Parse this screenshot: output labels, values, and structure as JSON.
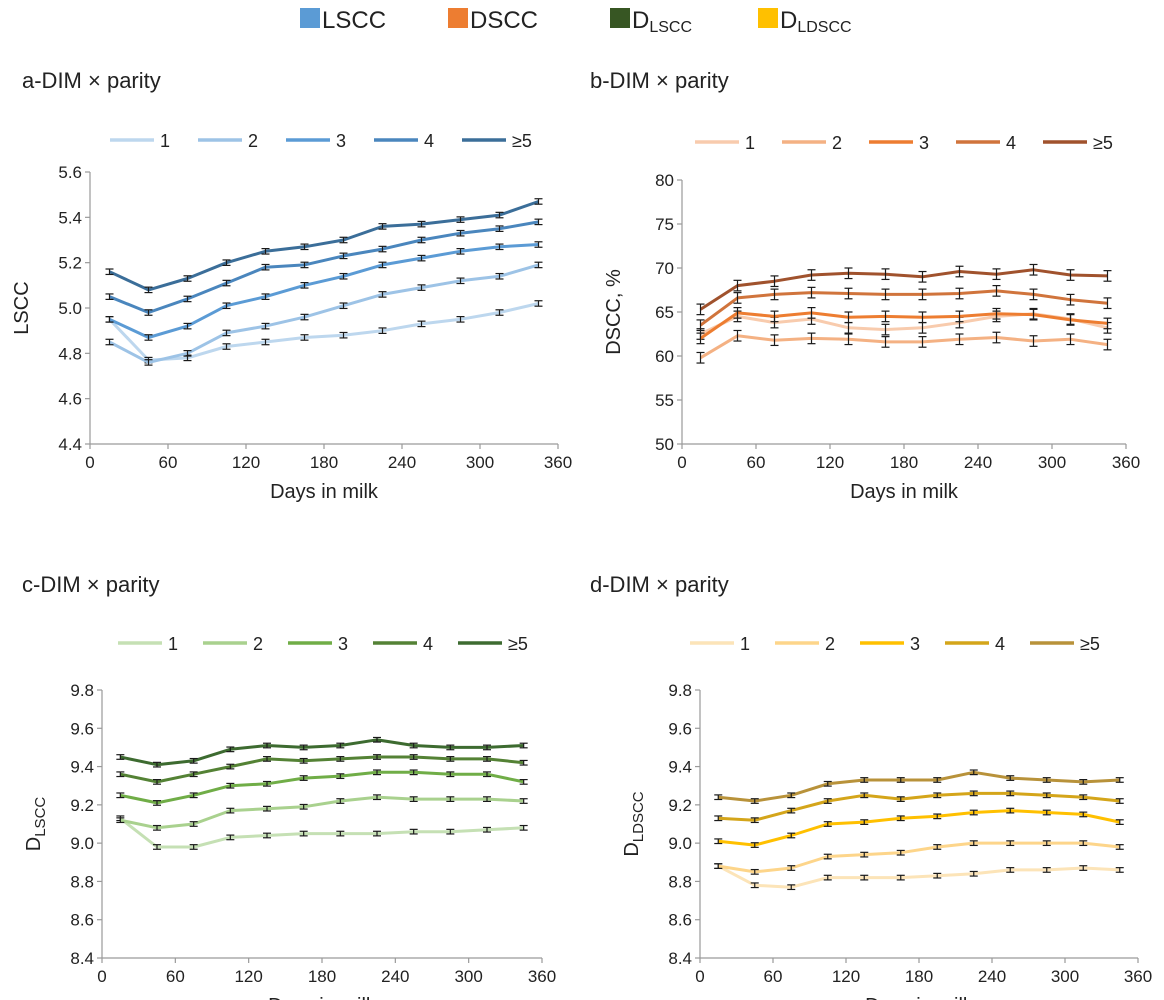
{
  "figure_legend": [
    {
      "label": "LSCC",
      "sub": "",
      "color": "#5b9bd5"
    },
    {
      "label": "DSCC",
      "sub": "",
      "color": "#ed7d31"
    },
    {
      "label": "D",
      "sub": "LSCC",
      "color": "#375623"
    },
    {
      "label": "D",
      "sub": "LDSCC",
      "color": "#ffc000"
    }
  ],
  "chart_data": [
    {
      "id": "a",
      "type": "line",
      "title": "a-DIM × parity",
      "xlabel": "Days in milk",
      "ylabel": "LSCC",
      "ylabel_sub": "",
      "xlim": [
        0,
        360
      ],
      "ylim": [
        4.4,
        5.6
      ],
      "xticks": [
        0,
        60,
        120,
        180,
        240,
        300,
        360
      ],
      "yticks": [
        "4.4",
        "4.6",
        "4.8",
        "5.0",
        "5.2",
        "5.4",
        "5.6"
      ],
      "legend_position": "top",
      "grid": false,
      "x": [
        15,
        45,
        75,
        105,
        135,
        165,
        195,
        225,
        255,
        285,
        315,
        345
      ],
      "series": [
        {
          "name": "1",
          "color": "#bdd7ee",
          "err": 0.012,
          "values": [
            4.95,
            4.77,
            4.78,
            4.83,
            4.85,
            4.87,
            4.88,
            4.9,
            4.93,
            4.95,
            4.98,
            5.02
          ]
        },
        {
          "name": "2",
          "color": "#9dc3e6",
          "err": 0.012,
          "values": [
            4.85,
            4.76,
            4.8,
            4.89,
            4.92,
            4.96,
            5.01,
            5.06,
            5.09,
            5.12,
            5.14,
            5.19
          ]
        },
        {
          "name": "3",
          "color": "#5b9bd5",
          "err": 0.012,
          "values": [
            4.95,
            4.87,
            4.92,
            5.01,
            5.05,
            5.1,
            5.14,
            5.19,
            5.22,
            5.25,
            5.27,
            5.28
          ]
        },
        {
          "name": "4",
          "color": "#4a86bd",
          "err": 0.012,
          "values": [
            5.05,
            4.98,
            5.04,
            5.11,
            5.18,
            5.19,
            5.23,
            5.26,
            5.3,
            5.33,
            5.35,
            5.38
          ]
        },
        {
          "name": "≥5",
          "color": "#3b6e99",
          "err": 0.012,
          "values": [
            5.16,
            5.08,
            5.13,
            5.2,
            5.25,
            5.27,
            5.3,
            5.36,
            5.37,
            5.39,
            5.41,
            5.47
          ]
        }
      ]
    },
    {
      "id": "b",
      "type": "line",
      "title": "b-DIM × parity",
      "xlabel": "Days in milk",
      "ylabel": "DSCC, %",
      "ylabel_sub": "",
      "xlim": [
        0,
        360
      ],
      "ylim": [
        50,
        80
      ],
      "xticks": [
        0,
        60,
        120,
        180,
        240,
        300,
        360
      ],
      "yticks": [
        "50",
        "55",
        "60",
        "65",
        "70",
        "75",
        "80"
      ],
      "legend_position": "top",
      "grid": false,
      "x": [
        15,
        45,
        75,
        105,
        135,
        165,
        195,
        225,
        255,
        285,
        315,
        345
      ],
      "series": [
        {
          "name": "1",
          "color": "#f8cbad",
          "err": 0.6,
          "values": [
            62.5,
            64.5,
            63.8,
            64.2,
            63.2,
            63.0,
            63.2,
            63.8,
            64.5,
            64.8,
            64.2,
            63.2
          ]
        },
        {
          "name": "2",
          "color": "#f4b183",
          "err": 0.6,
          "values": [
            59.8,
            62.3,
            61.8,
            62.0,
            61.9,
            61.6,
            61.6,
            61.9,
            62.1,
            61.7,
            61.9,
            61.3
          ]
        },
        {
          "name": "3",
          "color": "#ed7d31",
          "err": 0.6,
          "values": [
            62.0,
            64.9,
            64.5,
            64.9,
            64.4,
            64.5,
            64.4,
            64.5,
            64.8,
            64.7,
            64.1,
            63.7
          ]
        },
        {
          "name": "4",
          "color": "#d0743c",
          "err": 0.6,
          "values": [
            63.5,
            66.6,
            67.0,
            67.2,
            67.1,
            67.0,
            67.0,
            67.1,
            67.4,
            67.0,
            66.4,
            66.0
          ]
        },
        {
          "name": "≥5",
          "color": "#a0522d",
          "err": 0.6,
          "values": [
            65.3,
            68.0,
            68.5,
            69.2,
            69.4,
            69.3,
            69.0,
            69.6,
            69.3,
            69.8,
            69.2,
            69.1
          ]
        }
      ]
    },
    {
      "id": "c",
      "type": "line",
      "title": "c-DIM × parity",
      "xlabel": "Days in milk",
      "ylabel": "D",
      "ylabel_sub": "LSCC",
      "xlim": [
        0,
        360
      ],
      "ylim": [
        8.4,
        9.8
      ],
      "xticks": [
        0,
        60,
        120,
        180,
        240,
        300,
        360
      ],
      "yticks": [
        "8.4",
        "8.6",
        "8.8",
        "9.0",
        "9.2",
        "9.4",
        "9.6",
        "9.8"
      ],
      "legend_position": "top",
      "grid": false,
      "x": [
        15,
        45,
        75,
        105,
        135,
        165,
        195,
        225,
        255,
        285,
        315,
        345
      ],
      "series": [
        {
          "name": "1",
          "color": "#c5e0b4",
          "err": 0.012,
          "values": [
            9.13,
            8.98,
            8.98,
            9.03,
            9.04,
            9.05,
            9.05,
            9.05,
            9.06,
            9.06,
            9.07,
            9.08
          ]
        },
        {
          "name": "2",
          "color": "#a9d18e",
          "err": 0.012,
          "values": [
            9.12,
            9.08,
            9.1,
            9.17,
            9.18,
            9.19,
            9.22,
            9.24,
            9.23,
            9.23,
            9.23,
            9.22
          ]
        },
        {
          "name": "3",
          "color": "#70ad47",
          "err": 0.012,
          "values": [
            9.25,
            9.21,
            9.25,
            9.3,
            9.31,
            9.34,
            9.35,
            9.37,
            9.37,
            9.36,
            9.36,
            9.32
          ]
        },
        {
          "name": "4",
          "color": "#548235",
          "err": 0.012,
          "values": [
            9.36,
            9.32,
            9.36,
            9.4,
            9.44,
            9.43,
            9.44,
            9.45,
            9.45,
            9.44,
            9.44,
            9.42
          ]
        },
        {
          "name": "≥5",
          "color": "#3d6b30",
          "err": 0.012,
          "values": [
            9.45,
            9.41,
            9.43,
            9.49,
            9.51,
            9.5,
            9.51,
            9.54,
            9.51,
            9.5,
            9.5,
            9.51
          ]
        }
      ]
    },
    {
      "id": "d",
      "type": "line",
      "title": "d-DIM × parity",
      "xlabel": "Days in milk",
      "ylabel": "D",
      "ylabel_sub": "LDSCC",
      "xlim": [
        0,
        360
      ],
      "ylim": [
        8.4,
        9.8
      ],
      "xticks": [
        0,
        60,
        120,
        180,
        240,
        300,
        360
      ],
      "yticks": [
        "8.4",
        "8.6",
        "8.8",
        "9.0",
        "9.2",
        "9.4",
        "9.6",
        "9.8"
      ],
      "legend_position": "top",
      "grid": false,
      "x": [
        15,
        45,
        75,
        105,
        135,
        165,
        195,
        225,
        255,
        285,
        315,
        345
      ],
      "series": [
        {
          "name": "1",
          "color": "#fce4b8",
          "err": 0.012,
          "values": [
            8.88,
            8.78,
            8.77,
            8.82,
            8.82,
            8.82,
            8.83,
            8.84,
            8.86,
            8.86,
            8.87,
            8.86
          ]
        },
        {
          "name": "2",
          "color": "#fdd58a",
          "err": 0.012,
          "values": [
            8.88,
            8.85,
            8.87,
            8.93,
            8.94,
            8.95,
            8.98,
            9.0,
            9.0,
            9.0,
            9.0,
            8.98
          ]
        },
        {
          "name": "3",
          "color": "#ffc000",
          "err": 0.012,
          "values": [
            9.01,
            8.99,
            9.04,
            9.1,
            9.11,
            9.13,
            9.14,
            9.16,
            9.17,
            9.16,
            9.15,
            9.11
          ]
        },
        {
          "name": "4",
          "color": "#d4a51a",
          "err": 0.012,
          "values": [
            9.13,
            9.12,
            9.17,
            9.22,
            9.25,
            9.23,
            9.25,
            9.26,
            9.26,
            9.25,
            9.24,
            9.22
          ]
        },
        {
          "name": "≥5",
          "color": "#b8923a",
          "err": 0.012,
          "values": [
            9.24,
            9.22,
            9.25,
            9.31,
            9.33,
            9.33,
            9.33,
            9.37,
            9.34,
            9.33,
            9.32,
            9.33
          ]
        }
      ]
    }
  ]
}
